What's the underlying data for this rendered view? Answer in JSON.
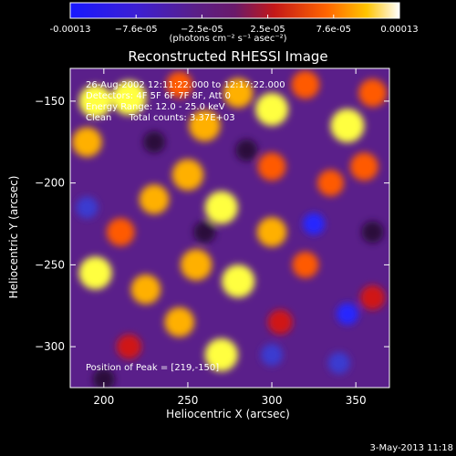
{
  "chart_data": {
    "type": "heatmap",
    "title": "Reconstructed RHESSI Image",
    "xlabel": "Heliocentric X (arcsec)",
    "ylabel": "Heliocentric Y (arcsec)",
    "xlim": [
      180,
      370
    ],
    "ylim": [
      -325,
      -130
    ],
    "x_ticks": [
      200,
      250,
      300,
      350
    ],
    "y_ticks": [
      -150,
      -200,
      -250,
      -300
    ],
    "colorbar": {
      "range": [
        -0.00013,
        0.00013
      ],
      "tick_labels": [
        "-0.00013",
        "−7.6e-05",
        "−2.5e-05",
        "2.5e-05",
        "7.6e-05",
        "0.00013"
      ],
      "unit": "(photons cm⁻² s⁻¹ asec⁻²)"
    },
    "annotations": [
      "26-Aug-2002 12:11:22.000 to 12:17:22.000",
      "Detectors: 4F 5F 6F 7F 8F, Att 0",
      "Energy Range: 12.0 - 25.0 keV",
      "Clean      Total counts: 3.37E+03"
    ],
    "peak_label": "Position of Peak = [219,-150]",
    "blobs": [
      {
        "x": 195,
        "y": -150,
        "v": 0.9
      },
      {
        "x": 215,
        "y": -148,
        "v": 1.0
      },
      {
        "x": 190,
        "y": -175,
        "v": 0.7
      },
      {
        "x": 245,
        "y": -140,
        "v": 0.5
      },
      {
        "x": 260,
        "y": -165,
        "v": 0.8
      },
      {
        "x": 280,
        "y": -145,
        "v": 0.7
      },
      {
        "x": 300,
        "y": -155,
        "v": 0.9
      },
      {
        "x": 320,
        "y": -140,
        "v": 0.6
      },
      {
        "x": 345,
        "y": -165,
        "v": 0.95
      },
      {
        "x": 360,
        "y": -145,
        "v": 0.6
      },
      {
        "x": 300,
        "y": -190,
        "v": 0.6
      },
      {
        "x": 335,
        "y": -200,
        "v": 0.5
      },
      {
        "x": 355,
        "y": -190,
        "v": 0.6
      },
      {
        "x": 250,
        "y": -195,
        "v": 0.8
      },
      {
        "x": 230,
        "y": -210,
        "v": 0.7
      },
      {
        "x": 270,
        "y": -215,
        "v": 0.9
      },
      {
        "x": 210,
        "y": -230,
        "v": 0.6
      },
      {
        "x": 300,
        "y": -230,
        "v": 0.7
      },
      {
        "x": 320,
        "y": -250,
        "v": 0.5
      },
      {
        "x": 195,
        "y": -255,
        "v": 0.9
      },
      {
        "x": 225,
        "y": -265,
        "v": 0.7
      },
      {
        "x": 255,
        "y": -250,
        "v": 0.8
      },
      {
        "x": 280,
        "y": -260,
        "v": 0.9
      },
      {
        "x": 245,
        "y": -285,
        "v": 0.7
      },
      {
        "x": 270,
        "y": -305,
        "v": 0.9
      },
      {
        "x": 305,
        "y": -285,
        "v": 0.4
      },
      {
        "x": 215,
        "y": -300,
        "v": 0.4
      },
      {
        "x": 360,
        "y": -270,
        "v": 0.4
      },
      {
        "x": 190,
        "y": -215,
        "v": -0.6
      },
      {
        "x": 325,
        "y": -225,
        "v": -0.7
      },
      {
        "x": 345,
        "y": -280,
        "v": -0.8
      },
      {
        "x": 300,
        "y": -305,
        "v": -0.6
      },
      {
        "x": 230,
        "y": -175,
        "v": -0.5
      },
      {
        "x": 285,
        "y": -180,
        "v": -0.4
      },
      {
        "x": 200,
        "y": -320,
        "v": -0.5
      },
      {
        "x": 360,
        "y": -230,
        "v": -0.5
      },
      {
        "x": 260,
        "y": -230,
        "v": -0.3
      },
      {
        "x": 340,
        "y": -310,
        "v": -0.6
      }
    ]
  },
  "footer": {
    "date": "3-May-2013 11:18"
  }
}
